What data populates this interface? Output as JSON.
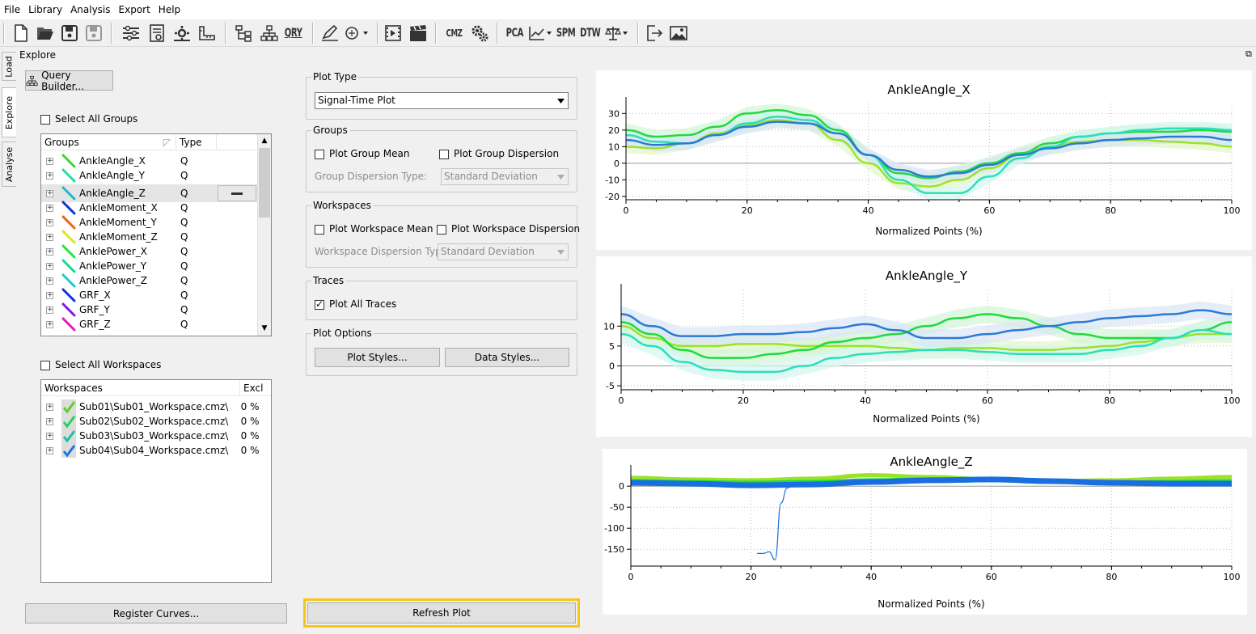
{
  "menu": [
    "File",
    "Library",
    "Analysis",
    "Export",
    "Help"
  ],
  "toolbar": {
    "icons": [
      "new-file-icon",
      "open-folder-icon",
      "save-icon",
      "save-as-icon",
      "settings-sliders-icon",
      "document-settings-icon",
      "toolbox-icon",
      "ruler-icon",
      "tree-icon",
      "hierarchy-icon",
      "query-icon",
      "signature-icon",
      "palette-icon",
      "filmstrip-icon",
      "clapper-icon",
      "cmz-icon",
      "gears-icon",
      "chart-line-icon",
      "balance-icon",
      "export-icon",
      "image-icon"
    ],
    "qry": "QRY",
    "cmz": "CMZ",
    "pca": "PCA",
    "spm": "SPM",
    "dtw": "DTW"
  },
  "sidetabs": [
    "Load",
    "Explore",
    "Analyse"
  ],
  "panel_title": "Explore",
  "query_builder_label": "Query Builder...",
  "select_all_groups": "Select All Groups",
  "groups_table": {
    "headers": [
      "Groups",
      "Type"
    ],
    "rows": [
      {
        "name": "AnkleAngle_X",
        "type": "Q",
        "color": "#3ad62a"
      },
      {
        "name": "AnkleAngle_Y",
        "type": "Q",
        "color": "#1fe09a"
      },
      {
        "name": "AnkleAngle_Z",
        "type": "Q",
        "color": "#20b7c9"
      },
      {
        "name": "AnkleMoment_X",
        "type": "Q",
        "color": "#1030d8"
      },
      {
        "name": "AnkleMoment_Y",
        "type": "Q",
        "color": "#f06010"
      },
      {
        "name": "AnkleMoment_Z",
        "type": "Q",
        "color": "#d8e81a"
      },
      {
        "name": "AnklePower_X",
        "type": "Q",
        "color": "#2ae43a"
      },
      {
        "name": "AnklePower_Y",
        "type": "Q",
        "color": "#18d890"
      },
      {
        "name": "AnklePower_Z",
        "type": "Q",
        "color": "#1ec8d8"
      },
      {
        "name": "GRF_X",
        "type": "Q",
        "color": "#1030d8"
      },
      {
        "name": "GRF_Y",
        "type": "Q",
        "color": "#8a18d8"
      },
      {
        "name": "GRF_Z",
        "type": "Q",
        "color": "#e818b8"
      }
    ]
  },
  "select_all_workspaces": "Select All Workspaces",
  "workspaces_table": {
    "headers": [
      "Workspaces",
      "Excl"
    ],
    "rows": [
      {
        "name": "Sub01\\Sub01_Workspace.cmz\\",
        "excl": "0 %",
        "color": "#5ad02a"
      },
      {
        "name": "Sub02\\Sub02_Workspace.cmz\\",
        "excl": "0 %",
        "color": "#2ad060"
      },
      {
        "name": "Sub03\\Sub03_Workspace.cmz\\",
        "excl": "0 %",
        "color": "#20c0a8"
      },
      {
        "name": "Sub04\\Sub04_Workspace.cmz\\",
        "excl": "0 %",
        "color": "#1a78e0"
      }
    ]
  },
  "register_curves_label": "Register Curves...",
  "plot_type": {
    "title": "Plot Type",
    "value": "Signal-Time Plot"
  },
  "groups_box": {
    "title": "Groups",
    "mean_label": "Plot Group Mean",
    "dispersion_label": "Plot Group Dispersion",
    "dispersion_type_label": "Group Dispersion Type:",
    "dispersion_type_value": "Standard Deviation"
  },
  "workspaces_box": {
    "title": "Workspaces",
    "mean_label": "Plot Workspace Mean",
    "dispersion_label": "Plot Workspace Dispersion",
    "dispersion_type_label": "Workspace Dispersion Type:",
    "dispersion_type_value": "Standard Deviation"
  },
  "traces_box": {
    "title": "Traces",
    "all_traces_label": "Plot All Traces",
    "all_traces_checked": true
  },
  "plot_options": {
    "title": "Plot Options",
    "plot_styles_label": "Plot Styles...",
    "data_styles_label": "Data Styles..."
  },
  "refresh_plot_label": "Refresh Plot",
  "chart_data": [
    {
      "type": "line",
      "title": "AnkleAngle_X",
      "xlabel": "Normalized Points (%)",
      "xlim": [
        0,
        100
      ],
      "ylim": [
        -22,
        36
      ],
      "xticks": [
        0,
        20,
        40,
        60,
        80,
        100
      ],
      "yticks": [
        -20,
        -10,
        0,
        10,
        20,
        30
      ],
      "series": [
        {
          "color": "#9be22a",
          "band": "#e4f6c8",
          "x": [
            0,
            5,
            10,
            15,
            20,
            25,
            30,
            35,
            40,
            45,
            50,
            55,
            60,
            65,
            70,
            75,
            80,
            85,
            90,
            95,
            100
          ],
          "y": [
            10,
            9,
            12,
            18,
            23,
            26,
            24,
            14,
            0,
            -12,
            -14,
            -10,
            -3,
            5,
            10,
            13,
            14,
            14,
            13,
            12,
            10
          ]
        },
        {
          "color": "#22d940",
          "band": "#d2f5d6",
          "x": [
            0,
            5,
            10,
            15,
            20,
            25,
            30,
            35,
            40,
            45,
            50,
            55,
            60,
            65,
            70,
            75,
            80,
            85,
            90,
            95,
            100
          ],
          "y": [
            20,
            16,
            17,
            22,
            30,
            32,
            29,
            20,
            5,
            -6,
            -9,
            -5,
            0,
            6,
            12,
            16,
            18,
            19,
            19,
            20,
            19
          ]
        },
        {
          "color": "#2ae0b8",
          "band": "#d4f7ef",
          "x": [
            0,
            5,
            10,
            15,
            20,
            25,
            30,
            35,
            40,
            45,
            50,
            55,
            60,
            65,
            70,
            75,
            80,
            85,
            90,
            95,
            100
          ],
          "y": [
            17,
            13,
            12,
            17,
            24,
            28,
            26,
            18,
            5,
            -10,
            -18,
            -18,
            -8,
            3,
            10,
            16,
            18,
            20,
            21,
            21,
            20
          ]
        },
        {
          "color": "#2a7ad6",
          "band": "#d8e6f5",
          "x": [
            0,
            5,
            10,
            15,
            20,
            25,
            30,
            35,
            40,
            45,
            50,
            55,
            60,
            65,
            70,
            75,
            80,
            85,
            90,
            95,
            100
          ],
          "y": [
            14,
            11,
            12,
            17,
            22,
            25,
            24,
            18,
            5,
            -4,
            -8,
            -6,
            -1,
            5,
            9,
            12,
            14,
            15,
            16,
            16,
            14
          ]
        }
      ]
    },
    {
      "type": "line",
      "title": "AnkleAngle_Y",
      "xlabel": "Normalized Points (%)",
      "xlim": [
        0,
        100
      ],
      "ylim": [
        -6,
        19
      ],
      "xticks": [
        0,
        20,
        40,
        60,
        80,
        100
      ],
      "yticks": [
        -5,
        0,
        5,
        10
      ],
      "series": [
        {
          "color": "#9be22a",
          "band": "#e4f6c8",
          "x": [
            0,
            5,
            10,
            15,
            20,
            25,
            30,
            35,
            40,
            45,
            50,
            55,
            60,
            65,
            70,
            75,
            80,
            85,
            90,
            95,
            100
          ],
          "y": [
            10,
            7,
            5,
            5,
            5.5,
            5.5,
            5,
            5,
            5,
            4.5,
            4,
            4.5,
            4.5,
            4,
            4,
            4.5,
            5,
            6,
            7,
            8,
            8
          ]
        },
        {
          "color": "#22d940",
          "band": "#d2f5d6",
          "x": [
            0,
            5,
            10,
            15,
            20,
            25,
            30,
            35,
            40,
            45,
            50,
            55,
            60,
            65,
            70,
            75,
            80,
            85,
            90,
            95,
            100
          ],
          "y": [
            11,
            8,
            4,
            2,
            2,
            3,
            4,
            6,
            7,
            8,
            10,
            12,
            13,
            12,
            10,
            8,
            7,
            7,
            7,
            9,
            11
          ]
        },
        {
          "color": "#2ae0b8",
          "band": "#d4f7ef",
          "x": [
            0,
            5,
            10,
            15,
            20,
            25,
            30,
            35,
            40,
            45,
            50,
            55,
            60,
            65,
            70,
            75,
            80,
            85,
            90,
            95,
            100
          ],
          "y": [
            8,
            5,
            1,
            -1,
            -1.5,
            -1.5,
            0,
            2,
            3,
            3.5,
            4,
            4,
            3.5,
            3,
            3,
            3,
            4,
            5,
            7,
            9,
            8
          ]
        },
        {
          "color": "#2a7ad6",
          "band": "#d8e6f5",
          "x": [
            0,
            5,
            10,
            15,
            20,
            25,
            30,
            35,
            40,
            45,
            50,
            55,
            60,
            65,
            70,
            75,
            80,
            85,
            90,
            95,
            100
          ],
          "y": [
            13,
            10,
            7.5,
            7.5,
            8,
            8,
            8.5,
            9.5,
            10.5,
            9,
            7,
            7,
            8,
            9,
            10,
            11,
            12,
            12.5,
            13,
            14,
            13
          ]
        }
      ]
    },
    {
      "type": "line",
      "title": "AnkleAngle_Z",
      "xlabel": "Normalized Points (%)",
      "xlim": [
        0,
        100
      ],
      "ylim": [
        -190,
        35
      ],
      "xticks": [
        0,
        20,
        40,
        60,
        80,
        100
      ],
      "yticks": [
        -150,
        -100,
        -50,
        0
      ],
      "series": [
        {
          "color": "#9be22a",
          "x": [
            0,
            10,
            20,
            30,
            40,
            50,
            60,
            70,
            80,
            90,
            100
          ],
          "y": [
            20,
            16,
            14,
            18,
            26,
            22,
            16,
            12,
            14,
            18,
            22
          ]
        },
        {
          "color": "#22d940",
          "x": [
            0,
            10,
            20,
            30,
            40,
            50,
            60,
            70,
            80,
            90,
            100
          ],
          "y": [
            12,
            10,
            8,
            10,
            14,
            16,
            14,
            10,
            8,
            10,
            12
          ]
        },
        {
          "color": "#2ae0b8",
          "x": [
            0,
            10,
            20,
            30,
            40,
            50,
            60,
            70,
            80,
            90,
            100
          ],
          "y": [
            6,
            4,
            4,
            6,
            8,
            12,
            14,
            12,
            8,
            6,
            8
          ]
        },
        {
          "color": "#1a6fe0",
          "x": [
            0,
            10,
            20,
            30,
            40,
            50,
            60,
            70,
            80,
            90,
            100
          ],
          "y": [
            8,
            6,
            2,
            4,
            10,
            14,
            16,
            12,
            8,
            6,
            6
          ]
        },
        {
          "color": "#1a6fe0",
          "x": [
            21,
            22,
            23,
            24,
            25,
            26,
            27
          ],
          "y": [
            -160,
            -160,
            -156,
            -175,
            -40,
            -5,
            5
          ]
        }
      ]
    }
  ]
}
